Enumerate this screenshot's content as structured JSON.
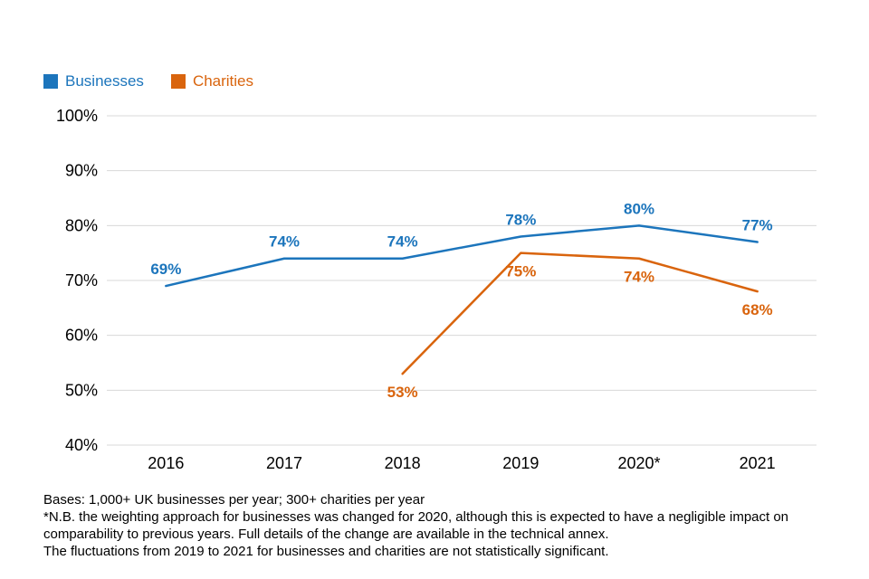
{
  "legend": [
    {
      "label": "Businesses",
      "color": "#1c75bc"
    },
    {
      "label": "Charities",
      "color": "#d9640d"
    }
  ],
  "chart_data": {
    "type": "line",
    "categories": [
      "2016",
      "2017",
      "2018",
      "2019",
      "2020*",
      "2021"
    ],
    "series": [
      {
        "name": "Businesses",
        "color": "#1c75bc",
        "values": [
          69,
          74,
          74,
          78,
          80,
          77
        ],
        "label_position": "above"
      },
      {
        "name": "Charities",
        "color": "#d9640d",
        "values": [
          null,
          null,
          53,
          75,
          74,
          68
        ],
        "label_position": "below"
      }
    ],
    "title": "",
    "xlabel": "",
    "ylabel": "",
    "ylim": [
      40,
      100
    ],
    "yticks": [
      40,
      50,
      60,
      70,
      80,
      90,
      100
    ],
    "ytick_suffix": "%",
    "grid": true,
    "legend_position": "top-left"
  },
  "footer": {
    "lines": [
      "Bases: 1,000+ UK businesses per year; 300+ charities per year",
      "*N.B. the weighting approach for businesses was changed for 2020, although this is expected to have a negligible impact on comparability to previous years. Full details of the change are available in the technical annex.",
      "The fluctuations from 2019 to 2021 for businesses and charities are not statistically significant."
    ]
  }
}
